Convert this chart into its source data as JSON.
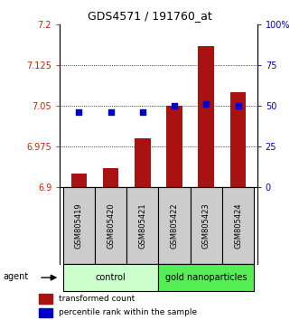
{
  "title": "GDS4571 / 191760_at",
  "samples": [
    "GSM805419",
    "GSM805420",
    "GSM805421",
    "GSM805422",
    "GSM805423",
    "GSM805424"
  ],
  "transformed_counts": [
    6.925,
    6.935,
    6.99,
    7.05,
    7.16,
    7.075
  ],
  "percentile_ranks": [
    46,
    46,
    46,
    50,
    51,
    50
  ],
  "ylim_left": [
    6.9,
    7.2
  ],
  "ylim_right": [
    0,
    100
  ],
  "yticks_left": [
    6.9,
    6.975,
    7.05,
    7.125,
    7.2
  ],
  "ytick_labels_left": [
    "6.9",
    "6.975",
    "7.05",
    "7.125",
    "7.2"
  ],
  "yticks_right": [
    0,
    25,
    50,
    75,
    100
  ],
  "ytick_labels_right": [
    "0",
    "25",
    "50",
    "75",
    "100%"
  ],
  "groups": [
    {
      "label": "control",
      "n": 3,
      "color": "#ccffcc"
    },
    {
      "label": "gold nanoparticles",
      "n": 3,
      "color": "#55ee55"
    }
  ],
  "bar_color": "#aa1111",
  "dot_color": "#0000cc",
  "label_color_left": "#cc2200",
  "label_color_right": "#0000bb",
  "agent_label": "agent",
  "legend_bar_label": "transformed count",
  "legend_dot_label": "percentile rank within the sample",
  "bar_width": 0.5,
  "fig_width": 3.31,
  "fig_height": 3.54,
  "dpi": 100
}
